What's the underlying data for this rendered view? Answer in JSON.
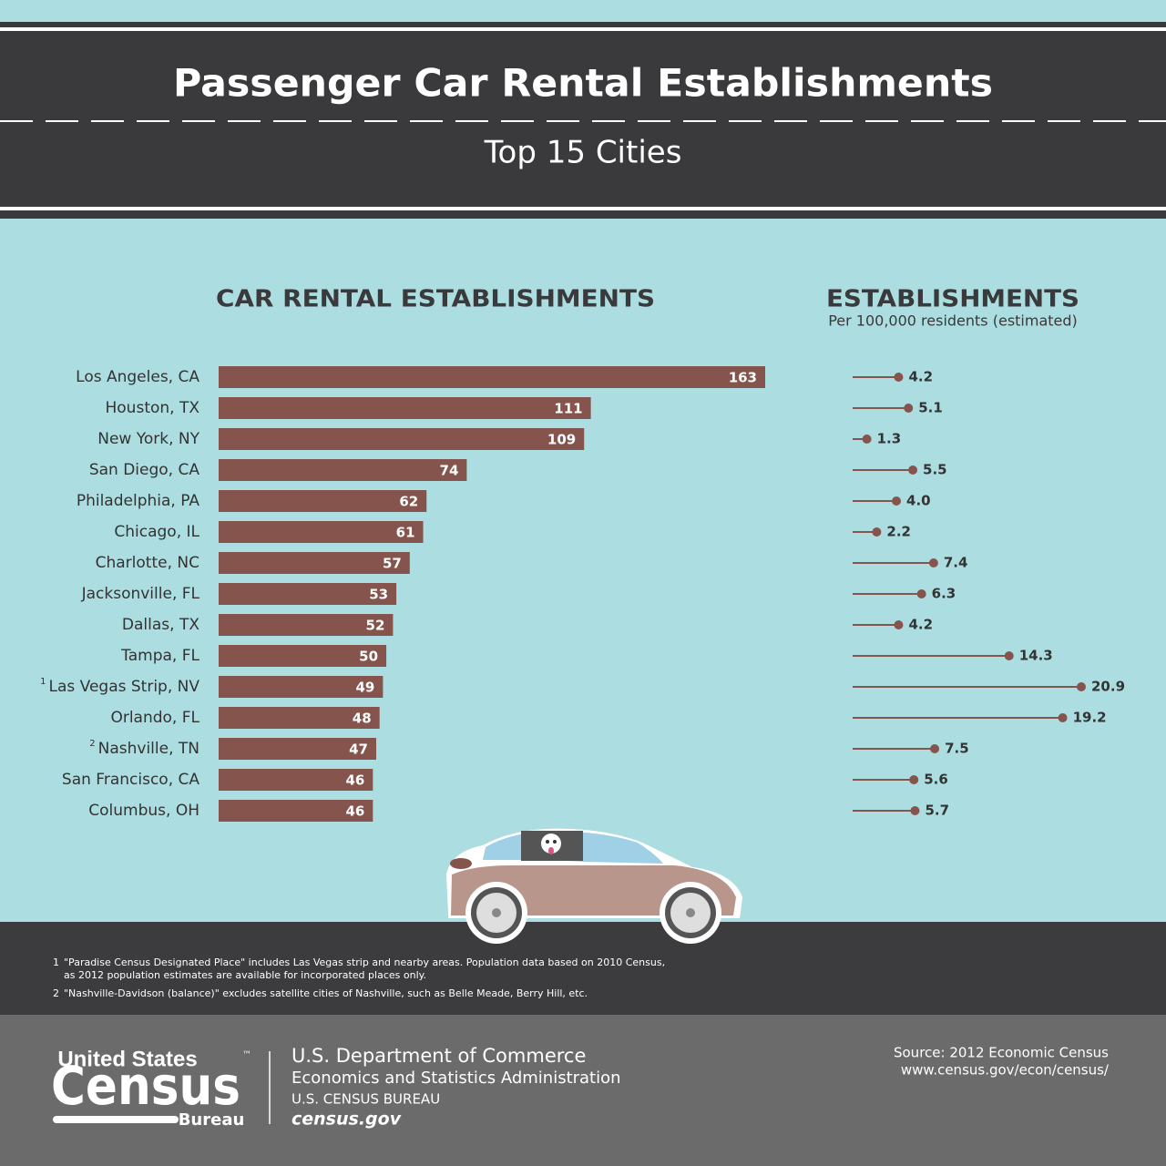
{
  "header": {
    "title": "Passenger Car Rental Establishments",
    "subtitle": "Top 15 Cities"
  },
  "chart_data": [
    {
      "type": "bar",
      "title": "CAR RENTAL ESTABLISHMENTS",
      "categories": [
        "Los Angeles, CA",
        "Houston, TX",
        "New York, NY",
        "San Diego, CA",
        "Philadelphia, PA",
        "Chicago, IL",
        "Charlotte, NC",
        "Jacksonville, FL",
        "Dallas, TX",
        "Tampa, FL",
        "Las Vegas Strip, NV",
        "Orlando, FL",
        "Nashville, TN",
        "San Francisco, CA",
        "Columbus, OH"
      ],
      "values": [
        163,
        111,
        109,
        74,
        62,
        61,
        57,
        53,
        52,
        50,
        49,
        48,
        47,
        46,
        46
      ],
      "color": "#85554d"
    },
    {
      "type": "lollipop",
      "title": "ESTABLISHMENTS",
      "subtitle": "Per 100,000 residents (estimated)",
      "values": [
        4.2,
        5.1,
        1.3,
        5.5,
        4.0,
        2.2,
        7.4,
        6.3,
        4.2,
        14.3,
        20.9,
        19.2,
        7.5,
        5.6,
        5.7
      ],
      "value_labels": [
        "4.2",
        "5.1",
        "1.3",
        "5.5",
        "4.0",
        "2.2",
        "7.4",
        "6.3",
        "4.2",
        "14.3",
        "20.9",
        "19.2",
        "7.5",
        "5.6",
        "5.7"
      ],
      "color": "#85554d"
    }
  ],
  "footnotes": [
    {
      "marker": "1",
      "row": 10,
      "lines": [
        "\"Paradise Census Designated Place\" includes Las Vegas strip and nearby areas. Population data based on 2010 Census,",
        "as 2012 population estimates are available for incorporated places only."
      ]
    },
    {
      "marker": "2",
      "row": 12,
      "lines": [
        "\"Nashville-Davidson (balance)\" excludes satellite cities of Nashville, such as Belle Meade, Berry Hill, etc."
      ]
    }
  ],
  "footer": {
    "logo": {
      "top": "United States",
      "tm": "™",
      "main": "Census",
      "bottom": "Bureau"
    },
    "department": [
      "U.S. Department of Commerce",
      "Economics and Statistics Administration",
      "U.S. CENSUS BUREAU",
      "census.gov"
    ],
    "source": [
      "Source: 2012 Economic Census",
      "www.census.gov/econ/census/"
    ]
  }
}
